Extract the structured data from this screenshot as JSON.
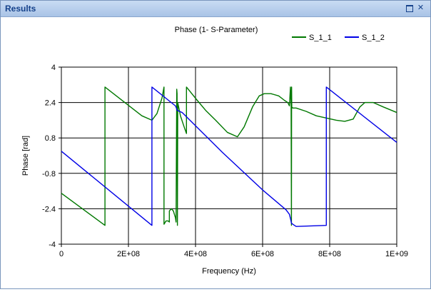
{
  "window": {
    "title": "Results"
  },
  "chart_data": {
    "type": "line",
    "title": "Phase (1- S-Parameter)",
    "xlabel": "Frequency (Hz)",
    "ylabel": "Phase [rad]",
    "xlim": [
      0,
      1000000000
    ],
    "ylim": [
      -4,
      4
    ],
    "x_ticks": [
      0,
      200000000,
      400000000,
      600000000,
      800000000,
      1000000000
    ],
    "x_tick_labels": [
      "0",
      "2E+08",
      "4E+08",
      "6E+08",
      "8E+08",
      "1E+09"
    ],
    "y_ticks": [
      -4,
      -2.4,
      -0.8,
      0.8,
      2.4,
      4
    ],
    "y_tick_labels": [
      "-4",
      "-2.4",
      "-0.8",
      "0.8",
      "2.4",
      "4"
    ],
    "grid": true,
    "legend_position": "top-right",
    "series": [
      {
        "name": "S_1_1",
        "color": "#007800",
        "x": [
          0,
          130000000,
          130000000,
          240000000,
          270000000,
          285000000,
          300000000,
          306000000,
          306000000,
          312000000,
          318000000,
          322000000,
          322000000,
          328000000,
          334000000,
          340000000,
          342000000,
          344000000,
          345000000,
          346000000,
          347000000,
          355000000,
          366000000,
          373000000,
          373000000,
          405000000,
          430000000,
          460000000,
          495000000,
          525000000,
          545000000,
          570000000,
          590000000,
          605000000,
          625000000,
          648000000,
          665000000,
          675000000,
          680000000,
          683000000,
          685000000,
          686000000,
          686500000,
          687000000,
          690000000,
          700000000,
          730000000,
          760000000,
          790000000,
          820000000,
          845000000,
          870000000,
          890000000,
          905000000,
          930000000,
          960000000,
          1000000000
        ],
        "y": [
          -1.7,
          -3.15,
          3.1,
          1.8,
          1.6,
          1.9,
          2.6,
          3.1,
          -3.1,
          -2.95,
          -2.95,
          -3.0,
          -2.5,
          -2.4,
          -2.5,
          -2.8,
          -3.0,
          3.0,
          2.8,
          -3.15,
          2.4,
          1.8,
          1.3,
          1.0,
          3.1,
          2.5,
          2.05,
          1.6,
          1.05,
          0.85,
          1.3,
          2.2,
          2.7,
          2.8,
          2.8,
          2.7,
          2.5,
          2.4,
          2.25,
          3.1,
          2.3,
          -3.15,
          3.1,
          2.2,
          2.15,
          2.15,
          2.0,
          1.8,
          1.7,
          1.6,
          1.55,
          1.65,
          2.2,
          2.4,
          2.4,
          2.2,
          1.95
        ]
      },
      {
        "name": "S_1_2",
        "color": "#0000e6",
        "x": [
          0,
          270000000,
          270000000,
          340000000,
          343000000,
          345000000,
          360000000,
          480000000,
          600000000,
          670000000,
          680000000,
          684000000,
          686000000,
          690000000,
          700000000,
          790000000,
          790000000,
          1000000000
        ],
        "y": [
          0.2,
          -3.15,
          3.1,
          2.25,
          2.15,
          2.05,
          1.95,
          0.15,
          -1.55,
          -2.45,
          -2.65,
          -2.9,
          -3.05,
          -3.1,
          -3.2,
          -3.15,
          3.1,
          0.6
        ]
      }
    ]
  }
}
